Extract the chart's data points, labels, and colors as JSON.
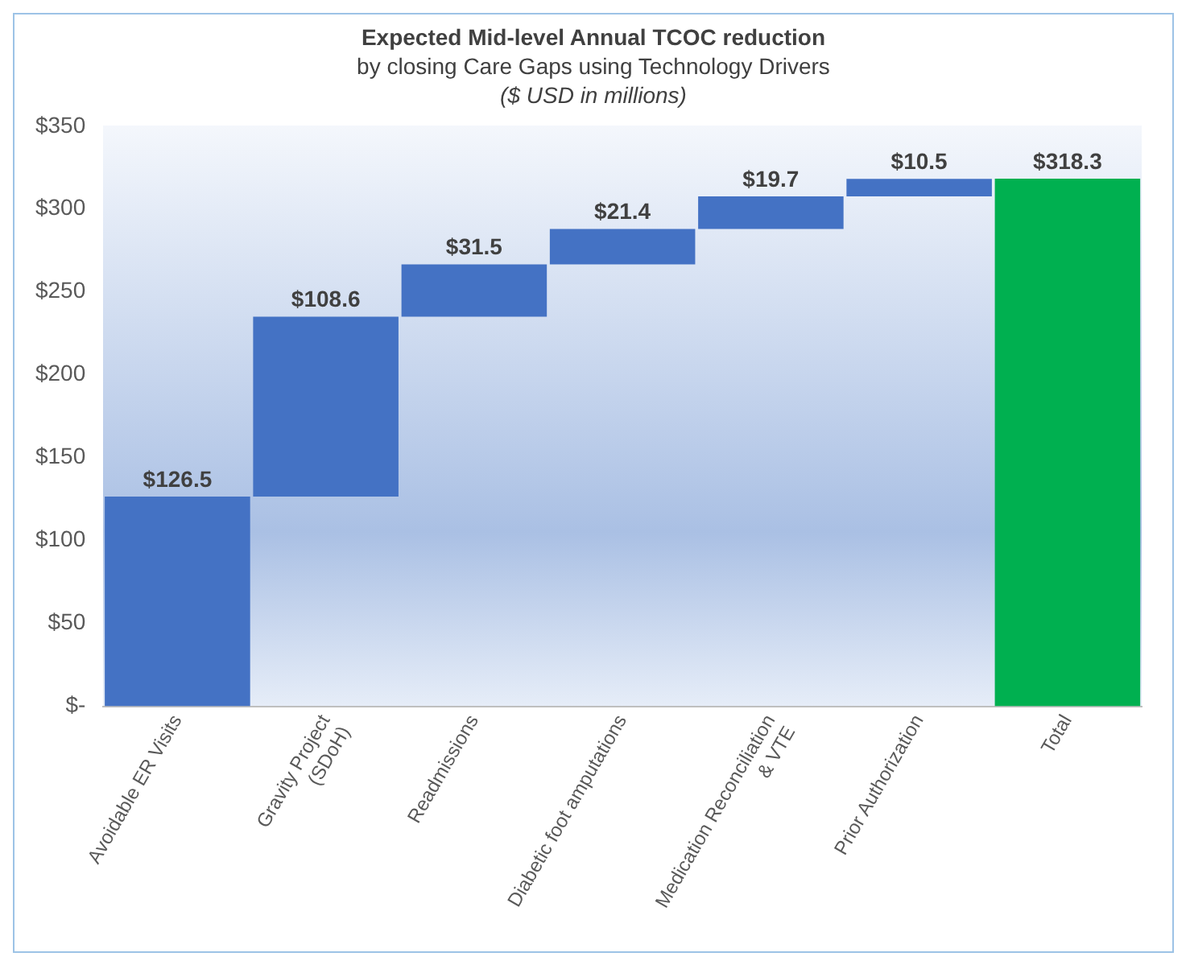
{
  "chart_data": {
    "type": "bar",
    "title": "Expected Mid-level Annual TCOC reduction",
    "subtitle": "by closing Care Gaps using Technology Drivers",
    "annotations": [
      "($ USD in millions)"
    ],
    "categories": [
      "Avoidable ER Visits",
      "Gravity Project\n(SDoH)",
      "Readmissions",
      "Diabetic foot amputations",
      "Medication Reconciliation\n& VTE",
      "Prior Authorization",
      "Total"
    ],
    "values": [
      126.5,
      108.6,
      31.5,
      21.4,
      19.7,
      10.5,
      318.3
    ],
    "base": [
      0,
      126.5,
      235.1,
      266.6,
      288.0,
      307.7,
      0
    ],
    "colors": [
      "#4472c4",
      "#4472c4",
      "#4472c4",
      "#4472c4",
      "#4472c4",
      "#4472c4",
      "#00b050"
    ],
    "value_labels": [
      "$126.5",
      "$108.6",
      "$31.5",
      "$21.4",
      "$19.7",
      "$10.5",
      "$318.3"
    ],
    "ylim": [
      0,
      350
    ],
    "yticks": [
      {
        "value": 0,
        "label": "$-"
      },
      {
        "value": 50,
        "label": "$50"
      },
      {
        "value": 100,
        "label": "$100"
      },
      {
        "value": 150,
        "label": "$150"
      },
      {
        "value": 200,
        "label": "$200"
      },
      {
        "value": 250,
        "label": "$250"
      },
      {
        "value": 300,
        "label": "$300"
      },
      {
        "value": 350,
        "label": "$350"
      }
    ],
    "grid": false,
    "legend": false
  }
}
